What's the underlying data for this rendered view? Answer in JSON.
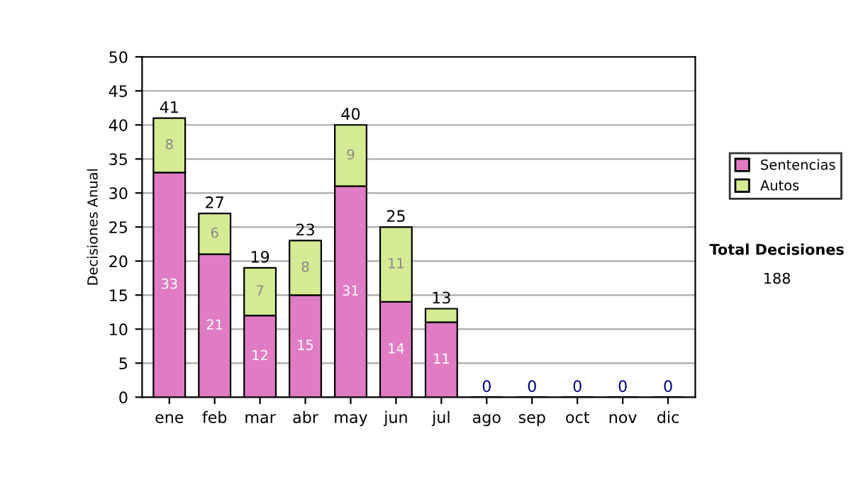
{
  "chart_data": {
    "type": "bar",
    "stacked": true,
    "ylabel": "Decisiones Anual",
    "categories": [
      "ene",
      "feb",
      "mar",
      "abr",
      "may",
      "jun",
      "jul",
      "ago",
      "sep",
      "oct",
      "nov",
      "dic"
    ],
    "series": [
      {
        "name": "Sentencias",
        "color": "#e07cc4",
        "values": [
          33,
          21,
          12,
          15,
          31,
          14,
          11,
          0,
          0,
          0,
          0,
          0
        ],
        "value_labels": [
          "33",
          "21",
          "12",
          "15",
          "31",
          "14",
          "11",
          null,
          null,
          null,
          null,
          null
        ]
      },
      {
        "name": "Autos",
        "color": "#d4eb94",
        "values": [
          8,
          6,
          7,
          8,
          9,
          11,
          2,
          0,
          0,
          0,
          0,
          0
        ],
        "value_labels": [
          "8",
          "6",
          "7",
          "8",
          "9",
          "11",
          null,
          null,
          null,
          null,
          null,
          null
        ]
      }
    ],
    "totals": [
      "41",
      "27",
      "19",
      "23",
      "40",
      "25",
      "13",
      "0",
      "0",
      "0",
      "0",
      "0"
    ],
    "ylim": [
      0,
      50
    ],
    "yticks": [
      0,
      5,
      10,
      15,
      20,
      25,
      30,
      35,
      40,
      45,
      50
    ],
    "grid": "y",
    "legend": "right",
    "annotations": [
      "Total Decisiones",
      "188"
    ]
  }
}
